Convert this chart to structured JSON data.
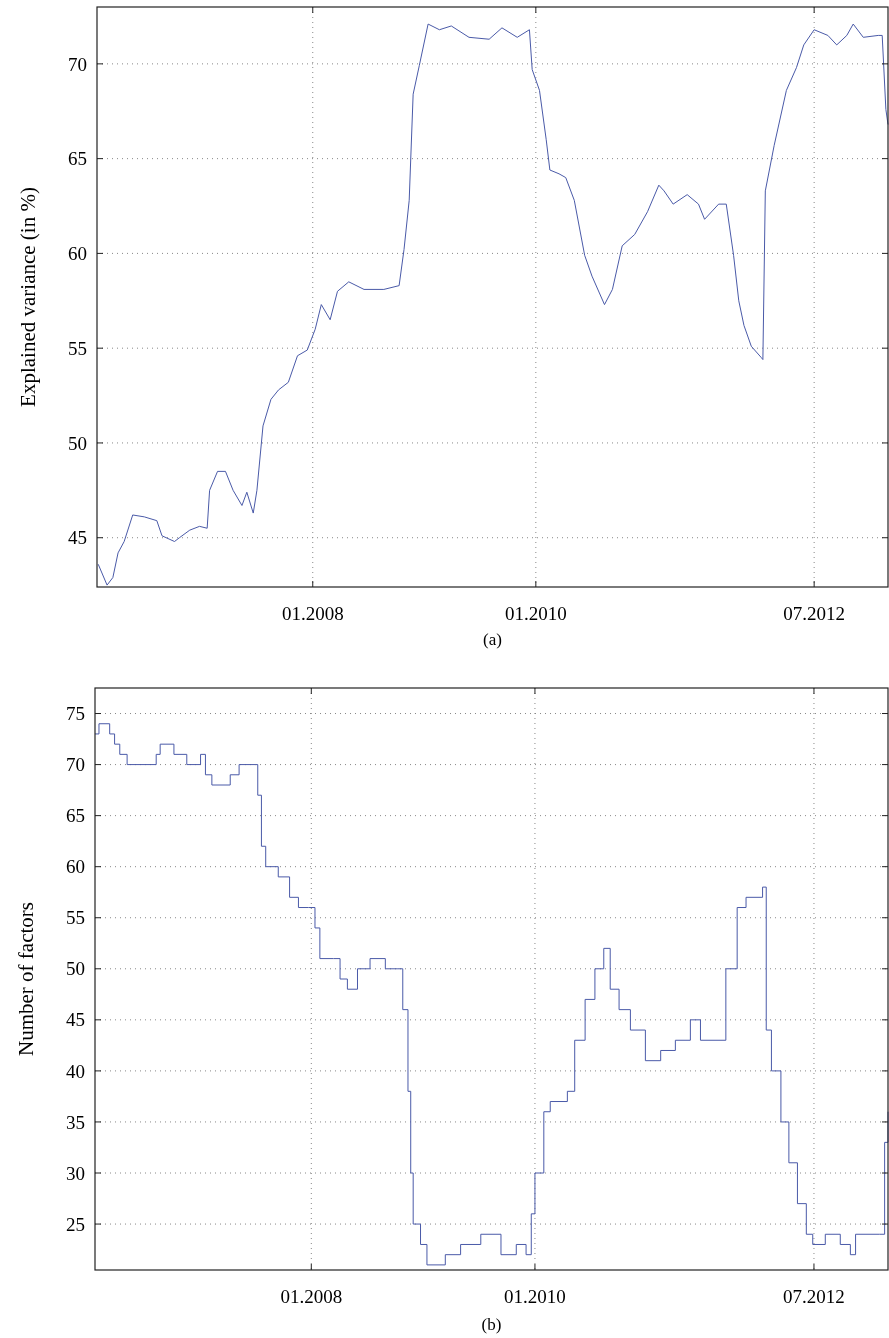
{
  "chart_data": [
    {
      "type": "line",
      "title": "(a)",
      "ylabel": "Explained variance (in %)",
      "grid": true,
      "xlim": [
        "2006-01-24",
        "2013-02-28"
      ],
      "xticks": [
        {
          "value": "2008-01-01",
          "label": "01.2008"
        },
        {
          "value": "2010-01-01",
          "label": "01.2010"
        },
        {
          "value": "2012-07-01",
          "label": "07.2012"
        }
      ],
      "ylim": [
        42.4,
        73
      ],
      "yticks": [
        45,
        50,
        55,
        60,
        65,
        70
      ],
      "series": [
        {
          "color": "#4a5aa8",
          "x": [
            "2006-01-28",
            "2006-02-26",
            "2006-03-17",
            "2006-04-03",
            "2006-04-23",
            "2006-05-21",
            "2006-06-28",
            "2006-08-08",
            "2006-08-25",
            "2006-10-05",
            "2006-10-21",
            "2006-11-24",
            "2006-12-26",
            "2007-01-20",
            "2007-01-28",
            "2007-02-23",
            "2007-03-21",
            "2007-04-15",
            "2007-05-14",
            "2007-05-30",
            "2007-06-20",
            "2007-07-02",
            "2007-07-22",
            "2007-08-17",
            "2007-09-11",
            "2007-10-13",
            "2007-11-12",
            "2007-12-14",
            "2008-01-09",
            "2008-01-29",
            "2008-02-27",
            "2008-03-22",
            "2008-04-28",
            "2008-06-17",
            "2008-08-21",
            "2008-10-10",
            "2008-10-26",
            "2008-11-12",
            "2008-11-25",
            "2008-12-15",
            "2009-01-13",
            "2009-02-19",
            "2009-03-30",
            "2009-05-27",
            "2009-08-01",
            "2009-09-12",
            "2009-11-01",
            "2009-12-11",
            "2009-12-20",
            "2010-01-13",
            "2010-02-04",
            "2010-02-16",
            "2010-03-18",
            "2010-04-09",
            "2010-05-07",
            "2010-06-10",
            "2010-07-04",
            "2010-08-14",
            "2010-09-09",
            "2010-10-11",
            "2010-11-21",
            "2011-01-02",
            "2011-02-08",
            "2011-02-25",
            "2011-03-27",
            "2011-05-12",
            "2011-06-18",
            "2011-07-08",
            "2011-08-23",
            "2011-09-17",
            "2011-10-11",
            "2011-10-28",
            "2011-11-14",
            "2011-12-08",
            "2012-01-10",
            "2012-01-15",
            "2012-01-23",
            "2012-02-21",
            "2012-04-01",
            "2012-05-04",
            "2012-05-28",
            "2012-07-01",
            "2012-08-15",
            "2012-09-13",
            "2012-10-16",
            "2012-11-06",
            "2012-12-09",
            "2013-01-27",
            "2013-02-09",
            "2013-02-21",
            "2013-02-28"
          ],
          "values": [
            43.6,
            42.5,
            42.9,
            44.2,
            44.8,
            46.2,
            46.1,
            45.9,
            45.1,
            44.8,
            45.0,
            45.4,
            45.6,
            45.5,
            47.5,
            48.5,
            48.5,
            47.5,
            46.7,
            47.4,
            46.3,
            47.5,
            50.9,
            52.3,
            52.8,
            53.2,
            54.6,
            54.9,
            56.0,
            57.3,
            56.5,
            58.0,
            58.5,
            58.1,
            58.1,
            58.3,
            60.2,
            62.8,
            68.4,
            69.9,
            72.1,
            71.8,
            72.0,
            71.4,
            71.3,
            71.9,
            71.4,
            71.8,
            69.7,
            68.6,
            66.0,
            64.4,
            64.2,
            64.0,
            62.8,
            59.9,
            58.8,
            57.3,
            58.1,
            60.4,
            61.0,
            62.2,
            63.6,
            63.3,
            62.6,
            63.1,
            62.6,
            61.8,
            62.6,
            62.6,
            59.9,
            57.5,
            56.2,
            55.1,
            54.5,
            54.4,
            63.3,
            65.7,
            68.6,
            69.8,
            71.0,
            71.8,
            71.5,
            71.0,
            71.5,
            72.1,
            71.4,
            71.5,
            71.5,
            67.6,
            66.8
          ]
        }
      ]
    },
    {
      "type": "step",
      "title": "(b)",
      "ylabel": "Number of factors",
      "grid": true,
      "xlim": [
        "2006-01-24",
        "2013-02-28"
      ],
      "xticks": [
        {
          "value": "2008-01-01",
          "label": "01.2008"
        },
        {
          "value": "2010-01-01",
          "label": "01.2010"
        },
        {
          "value": "2012-07-01",
          "label": "07.2012"
        }
      ],
      "ylim": [
        20.5,
        77.5
      ],
      "yticks": [
        25,
        30,
        35,
        40,
        45,
        50,
        55,
        60,
        65,
        70,
        75
      ],
      "series": [
        {
          "color": "#4a5aa8",
          "x": [
            "2006-01-24",
            "2006-02-06",
            "2006-03-13",
            "2006-03-29",
            "2006-04-15",
            "2006-05-09",
            "2006-08-12",
            "2006-08-25",
            "2006-10-09",
            "2006-11-20",
            "2007-01-04",
            "2007-01-20",
            "2007-02-10",
            "2007-04-11",
            "2007-05-10",
            "2007-07-02",
            "2007-07-10",
            "2007-07-22",
            "2007-08-05",
            "2007-09-15",
            "2007-10-22",
            "2007-11-20",
            "2007-12-23",
            "2008-01-13",
            "2008-01-29",
            "2008-03-14",
            "2008-04-04",
            "2008-04-28",
            "2008-05-31",
            "2008-07-11",
            "2008-08-30",
            "2008-10-10",
            "2008-10-26",
            "2008-11-12",
            "2008-11-21",
            "2008-11-29",
            "2008-12-23",
            "2009-01-13",
            "2009-03-14",
            "2009-05-03",
            "2009-07-08",
            "2009-09-12",
            "2009-11-01",
            "2009-12-03",
            "2009-12-20",
            "2010-01-01",
            "2010-01-30",
            "2010-02-20",
            "2010-04-17",
            "2010-05-11",
            "2010-06-14",
            "2010-07-16",
            "2010-08-14",
            "2010-09-04",
            "2010-10-03",
            "2010-11-09",
            "2010-12-28",
            "2011-02-16",
            "2011-04-05",
            "2011-05-24",
            "2011-06-26",
            "2011-09-17",
            "2011-10-24",
            "2011-11-22",
            "2012-01-10",
            "2012-01-15",
            "2012-01-27",
            "2012-02-13",
            "2012-03-15",
            "2012-04-10",
            "2012-05-08",
            "2012-06-06",
            "2012-06-27",
            "2012-08-07",
            "2012-09-25",
            "2012-10-28",
            "2012-11-14",
            "2013-02-01",
            "2013-02-17",
            "2013-02-28"
          ],
          "values": [
            73,
            74,
            73,
            72,
            71,
            70,
            71,
            72,
            71,
            70,
            71,
            69,
            68,
            69,
            70,
            70,
            67,
            62,
            60,
            59,
            57,
            56,
            56,
            54,
            51,
            51,
            49,
            48,
            50,
            51,
            50,
            50,
            46,
            38,
            30,
            25,
            23,
            21,
            22,
            23,
            24,
            22,
            23,
            22,
            26,
            30,
            36,
            37,
            38,
            43,
            47,
            50,
            52,
            48,
            46,
            44,
            41,
            42,
            43,
            45,
            43,
            50,
            56,
            57,
            57,
            58,
            44,
            40,
            35,
            31,
            27,
            24,
            23,
            24,
            23,
            22,
            24,
            24,
            33,
            36
          ]
        }
      ]
    }
  ]
}
